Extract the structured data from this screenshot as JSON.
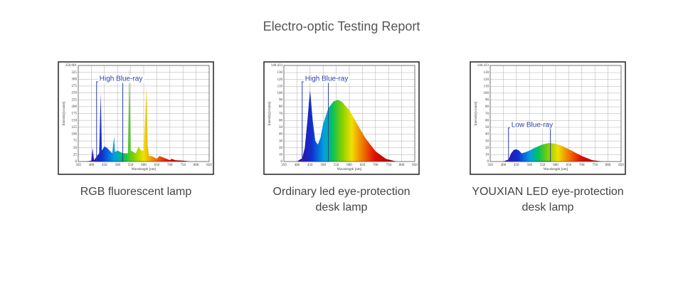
{
  "title": "Electro-optic Testing Report",
  "chart_data": [
    {
      "type": "area",
      "annotation": "High Blue-ray",
      "caption": [
        "RGB fluorescent lamp"
      ],
      "xlabel": "Wavelength [nm]",
      "ylabel": "Intensity[counts]",
      "x": [
        380,
        400,
        405,
        410,
        430,
        436,
        440,
        450,
        460,
        480,
        487,
        490,
        500,
        520,
        540,
        545,
        550,
        570,
        580,
        590,
        600,
        611,
        615,
        620,
        630,
        650,
        660,
        700,
        707,
        720,
        750,
        780
      ],
      "values": [
        0,
        3,
        50,
        5,
        30,
        250,
        40,
        55,
        50,
        30,
        90,
        35,
        40,
        30,
        30,
        350,
        40,
        30,
        55,
        40,
        40,
        270,
        60,
        20,
        20,
        10,
        20,
        5,
        10,
        5,
        3,
        0
      ],
      "xlim": [
        350,
        850
      ],
      "xticks": [
        350,
        400,
        450,
        500,
        550,
        600,
        650,
        700,
        750,
        800,
        850
      ],
      "ylim": [
        0,
        350.001
      ],
      "yticks": [
        0,
        25,
        50,
        75,
        100,
        125,
        150,
        175,
        200,
        225,
        250,
        275,
        300,
        325,
        350.001
      ],
      "grid": true
    },
    {
      "type": "area",
      "annotation": "High Blue-ray",
      "caption": [
        "Ordinary led eye-protection",
        "desk lamp"
      ],
      "xlabel": "Wavelength [nm]",
      "ylabel": "Intensity[counts]",
      "x": [
        400,
        420,
        430,
        440,
        450,
        460,
        470,
        480,
        490,
        500,
        520,
        540,
        555,
        570,
        600,
        630,
        660,
        700,
        740,
        780
      ],
      "values": [
        0,
        5,
        20,
        60,
        105,
        60,
        30,
        25,
        35,
        55,
        78,
        88,
        90,
        88,
        75,
        55,
        35,
        15,
        4,
        0
      ],
      "xlim": [
        350,
        850
      ],
      "xticks": [
        350,
        400,
        450,
        500,
        550,
        600,
        650,
        700,
        750,
        800,
        850
      ],
      "ylim": [
        0,
        140.433
      ],
      "yticks": [
        0,
        10,
        20,
        30,
        40,
        50,
        60,
        70,
        80,
        90,
        100,
        110,
        120,
        130,
        140.433
      ],
      "grid": true
    },
    {
      "type": "area",
      "annotation": "Low Blue-ray",
      "caption": [
        "YOUXIAN LED eye-protection",
        "desk lamp"
      ],
      "xlabel": "Wavelength [nm]",
      "ylabel": "Intensity[counts]",
      "x": [
        400,
        420,
        430,
        440,
        450,
        460,
        470,
        480,
        500,
        520,
        550,
        575,
        600,
        630,
        660,
        700,
        740,
        780
      ],
      "values": [
        0,
        3,
        12,
        17,
        18,
        16,
        12,
        13,
        16,
        20,
        25,
        27,
        26,
        22,
        16,
        8,
        2,
        0
      ],
      "xlim": [
        350,
        850
      ],
      "xticks": [
        350,
        400,
        450,
        500,
        550,
        600,
        650,
        700,
        750,
        800,
        850
      ],
      "ylim": [
        0,
        140.433
      ],
      "yticks": [
        0,
        10,
        20,
        30,
        40,
        50,
        60,
        70,
        80,
        90,
        100,
        110,
        120,
        130,
        140.433
      ],
      "grid": true
    }
  ]
}
